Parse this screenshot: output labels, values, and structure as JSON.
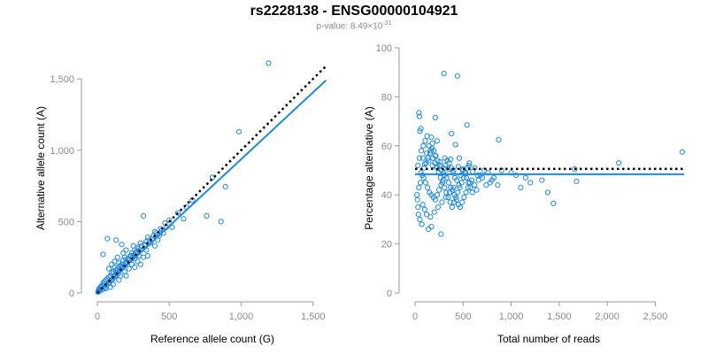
{
  "title": "rs2228138 - ENSG00000104921",
  "subtitle": {
    "prefix": "p-value: 8.49×10",
    "exponent": "-31"
  },
  "colors": {
    "points": "#1e88e5",
    "fit_line": "#1e88e5",
    "reference_line": "#000000",
    "axis": "#9a9a9a"
  },
  "chart_data": [
    {
      "type": "scatter",
      "xlabel": "Reference allele count (G)",
      "ylabel": "Alternative allele count (A)",
      "xlim": [
        0,
        1600
      ],
      "ylim": [
        0,
        1600
      ],
      "xticks": [
        0,
        500,
        1000,
        1500
      ],
      "xtick_labels": [
        "0",
        "500",
        "1,000",
        "1,500"
      ],
      "yticks": [
        0,
        500,
        1000,
        1500
      ],
      "ytick_labels": [
        "0",
        "500",
        "1,000",
        "1,500"
      ],
      "grid": false,
      "lines": [
        {
          "role": "fit",
          "style": "solid",
          "x": [
            0,
            1590
          ],
          "y": [
            0,
            1490
          ]
        },
        {
          "role": "reference",
          "style": "dotted",
          "x": [
            0,
            1590
          ],
          "y": [
            0,
            1590
          ]
        }
      ],
      "points": [
        [
          1190,
          1610
        ],
        [
          985,
          1130
        ],
        [
          890,
          745
        ],
        [
          800,
          810
        ],
        [
          760,
          540
        ],
        [
          860,
          500
        ],
        [
          660,
          650
        ],
        [
          620,
          600
        ],
        [
          560,
          560
        ],
        [
          600,
          520
        ],
        [
          520,
          460
        ],
        [
          470,
          490
        ],
        [
          440,
          450
        ],
        [
          420,
          410
        ],
        [
          400,
          430
        ],
        [
          380,
          380
        ],
        [
          350,
          390
        ],
        [
          320,
          540
        ],
        [
          300,
          350
        ],
        [
          280,
          320
        ],
        [
          260,
          300
        ],
        [
          240,
          280
        ],
        [
          250,
          330
        ],
        [
          230,
          260
        ],
        [
          210,
          240
        ],
        [
          200,
          220
        ],
        [
          190,
          250
        ],
        [
          180,
          230
        ],
        [
          170,
          200
        ],
        [
          160,
          190
        ],
        [
          150,
          210
        ],
        [
          140,
          170
        ],
        [
          130,
          160
        ],
        [
          120,
          180
        ],
        [
          110,
          150
        ],
        [
          100,
          140
        ],
        [
          90,
          120
        ],
        [
          80,
          110
        ],
        [
          70,
          100
        ],
        [
          60,
          90
        ],
        [
          50,
          80
        ],
        [
          45,
          60
        ],
        [
          40,
          70
        ],
        [
          35,
          50
        ],
        [
          30,
          40
        ],
        [
          25,
          45
        ],
        [
          20,
          30
        ],
        [
          18,
          25
        ],
        [
          15,
          20
        ],
        [
          12,
          30
        ],
        [
          10,
          15
        ],
        [
          8,
          10
        ],
        [
          6,
          12
        ],
        [
          5,
          5
        ],
        [
          30,
          20
        ],
        [
          40,
          30
        ],
        [
          55,
          40
        ],
        [
          65,
          55
        ],
        [
          75,
          65
        ],
        [
          85,
          70
        ],
        [
          95,
          90
        ],
        [
          105,
          95
        ],
        [
          115,
          110
        ],
        [
          125,
          120
        ],
        [
          135,
          140
        ],
        [
          145,
          135
        ],
        [
          155,
          160
        ],
        [
          165,
          170
        ],
        [
          175,
          185
        ],
        [
          185,
          190
        ],
        [
          195,
          205
        ],
        [
          205,
          215
        ],
        [
          215,
          230
        ],
        [
          225,
          235
        ],
        [
          235,
          260
        ],
        [
          245,
          250
        ],
        [
          255,
          265
        ],
        [
          265,
          280
        ],
        [
          275,
          290
        ],
        [
          285,
          310
        ],
        [
          295,
          300
        ],
        [
          310,
          330
        ],
        [
          330,
          340
        ],
        [
          340,
          360
        ],
        [
          360,
          370
        ],
        [
          370,
          350
        ],
        [
          390,
          400
        ],
        [
          410,
          420
        ],
        [
          430,
          400
        ],
        [
          450,
          440
        ],
        [
          480,
          460
        ],
        [
          500,
          510
        ],
        [
          130,
          370
        ],
        [
          170,
          340
        ],
        [
          70,
          380
        ],
        [
          40,
          270
        ],
        [
          200,
          120
        ],
        [
          260,
          180
        ],
        [
          300,
          200
        ],
        [
          350,
          260
        ],
        [
          150,
          90
        ],
        [
          110,
          60
        ],
        [
          90,
          40
        ],
        [
          60,
          30
        ],
        [
          190,
          150
        ],
        [
          220,
          170
        ],
        [
          240,
          200
        ],
        [
          280,
          220
        ],
        [
          320,
          250
        ],
        [
          340,
          300
        ],
        [
          400,
          330
        ],
        [
          420,
          370
        ],
        [
          460,
          420
        ],
        [
          200,
          300
        ],
        [
          180,
          280
        ],
        [
          120,
          220
        ],
        [
          100,
          200
        ],
        [
          80,
          170
        ],
        [
          140,
          250
        ],
        [
          160,
          120
        ],
        [
          260,
          240
        ],
        [
          290,
          260
        ]
      ]
    },
    {
      "type": "scatter",
      "xlabel": "Total number of reads",
      "ylabel": "Percentage alternative (A)",
      "xlim": [
        0,
        2800
      ],
      "ylim": [
        0,
        100
      ],
      "xticks": [
        0,
        500,
        1000,
        1500,
        2000,
        2500
      ],
      "xtick_labels": [
        "0",
        "500",
        "1,000",
        "1,500",
        "2,000",
        "2,500"
      ],
      "yticks": [
        0,
        20,
        40,
        60,
        80,
        100
      ],
      "ytick_labels": [
        "0",
        "20",
        "40",
        "60",
        "80",
        "100"
      ],
      "grid": false,
      "lines": [
        {
          "role": "fit",
          "style": "solid",
          "x": [
            0,
            2800
          ],
          "y": [
            48.4,
            48.4
          ]
        },
        {
          "role": "reference",
          "style": "dotted",
          "x": [
            0,
            2800
          ],
          "y": [
            50.6,
            50.6
          ]
        }
      ],
      "points": [
        [
          300,
          89.5
        ],
        [
          440,
          88.5
        ],
        [
          40,
          73.5
        ],
        [
          45,
          72
        ],
        [
          210,
          71.5
        ],
        [
          60,
          67
        ],
        [
          50,
          66
        ],
        [
          540,
          68.5
        ],
        [
          380,
          65
        ],
        [
          170,
          63.5
        ],
        [
          230,
          62
        ],
        [
          870,
          62.5
        ],
        [
          180,
          61
        ],
        [
          420,
          60.5
        ],
        [
          2780,
          57.5
        ],
        [
          120,
          57
        ],
        [
          210,
          56
        ],
        [
          80,
          55
        ],
        [
          310,
          55
        ],
        [
          370,
          54.5
        ],
        [
          460,
          55
        ],
        [
          140,
          54
        ],
        [
          260,
          53.5
        ],
        [
          100,
          52.5
        ],
        [
          180,
          52
        ],
        [
          230,
          51.5
        ],
        [
          300,
          51
        ],
        [
          350,
          50.5
        ],
        [
          400,
          50
        ],
        [
          450,
          51.5
        ],
        [
          500,
          50.5
        ],
        [
          560,
          52
        ],
        [
          600,
          49.5
        ],
        [
          620,
          51
        ],
        [
          650,
          48
        ],
        [
          700,
          47
        ],
        [
          760,
          49
        ],
        [
          800,
          46
        ],
        [
          860,
          44
        ],
        [
          900,
          50
        ],
        [
          1000,
          49
        ],
        [
          1050,
          48
        ],
        [
          1100,
          43
        ],
        [
          1150,
          47
        ],
        [
          1200,
          45
        ],
        [
          1320,
          46
        ],
        [
          1380,
          41
        ],
        [
          1440,
          36.5
        ],
        [
          1660,
          50.5
        ],
        [
          1680,
          45.5
        ],
        [
          2120,
          53
        ],
        [
          60,
          49
        ],
        [
          90,
          47
        ],
        [
          110,
          45
        ],
        [
          130,
          43
        ],
        [
          150,
          41
        ],
        [
          170,
          40
        ],
        [
          190,
          39
        ],
        [
          210,
          38
        ],
        [
          230,
          40
        ],
        [
          250,
          42
        ],
        [
          270,
          44
        ],
        [
          290,
          46
        ],
        [
          310,
          48
        ],
        [
          330,
          47
        ],
        [
          350,
          45
        ],
        [
          370,
          43
        ],
        [
          390,
          42
        ],
        [
          410,
          40
        ],
        [
          430,
          38
        ],
        [
          450,
          36
        ],
        [
          470,
          35
        ],
        [
          490,
          37
        ],
        [
          510,
          39
        ],
        [
          530,
          41
        ],
        [
          550,
          43
        ],
        [
          570,
          45
        ],
        [
          590,
          46
        ],
        [
          30,
          35
        ],
        [
          35,
          32
        ],
        [
          50,
          30
        ],
        [
          70,
          28
        ],
        [
          140,
          26
        ],
        [
          170,
          27
        ],
        [
          270,
          24
        ],
        [
          40,
          43
        ],
        [
          55,
          45
        ],
        [
          75,
          48
        ],
        [
          95,
          51
        ],
        [
          115,
          53
        ],
        [
          135,
          55
        ],
        [
          155,
          57
        ],
        [
          175,
          59
        ],
        [
          195,
          58
        ],
        [
          215,
          56
        ],
        [
          235,
          54
        ],
        [
          255,
          52
        ],
        [
          275,
          50
        ],
        [
          295,
          49
        ],
        [
          315,
          52
        ],
        [
          335,
          54
        ],
        [
          355,
          53
        ],
        [
          375,
          51
        ],
        [
          395,
          49
        ],
        [
          415,
          47
        ],
        [
          435,
          46
        ],
        [
          455,
          44
        ],
        [
          475,
          48
        ],
        [
          495,
          50
        ],
        [
          515,
          49
        ],
        [
          535,
          47
        ],
        [
          555,
          45
        ],
        [
          575,
          43
        ],
        [
          595,
          41
        ],
        [
          620,
          44
        ],
        [
          640,
          42
        ],
        [
          660,
          46
        ],
        [
          680,
          48
        ],
        [
          720,
          50
        ],
        [
          740,
          44
        ],
        [
          780,
          45
        ],
        [
          820,
          47
        ],
        [
          30,
          52
        ],
        [
          45,
          55
        ],
        [
          65,
          58
        ],
        [
          85,
          60
        ],
        [
          105,
          62
        ],
        [
          125,
          64
        ],
        [
          145,
          60
        ],
        [
          165,
          58
        ],
        [
          185,
          55
        ],
        [
          205,
          53
        ],
        [
          225,
          51
        ],
        [
          245,
          49
        ],
        [
          265,
          47
        ],
        [
          285,
          45
        ],
        [
          305,
          43
        ],
        [
          325,
          41
        ],
        [
          345,
          39
        ],
        [
          365,
          37
        ],
        [
          385,
          35
        ],
        [
          405,
          37
        ],
        [
          425,
          39
        ],
        [
          445,
          41
        ],
        [
          465,
          43
        ],
        [
          485,
          45
        ],
        [
          505,
          47
        ],
        [
          525,
          49
        ],
        [
          545,
          51
        ],
        [
          565,
          53
        ],
        [
          20,
          40
        ],
        [
          25,
          38
        ],
        [
          80,
          36
        ],
        [
          100,
          34
        ],
        [
          120,
          32
        ],
        [
          160,
          31
        ],
        [
          200,
          33
        ],
        [
          240,
          35
        ],
        [
          280,
          37
        ],
        [
          320,
          39
        ],
        [
          360,
          41
        ],
        [
          400,
          43
        ]
      ]
    }
  ]
}
